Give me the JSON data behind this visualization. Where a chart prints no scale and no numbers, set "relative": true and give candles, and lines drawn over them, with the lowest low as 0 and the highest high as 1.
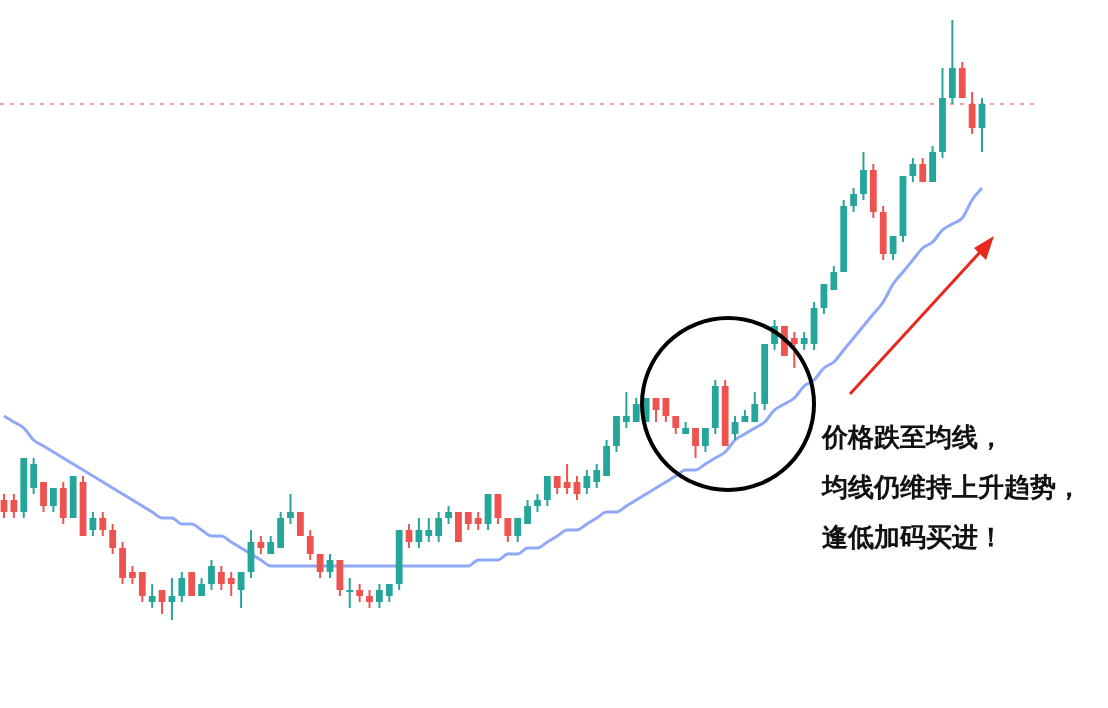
{
  "chart_data": {
    "type": "candlestick",
    "relative": true,
    "categories": [
      null,
      null,
      null,
      null,
      null,
      null,
      null,
      null,
      null,
      null,
      null,
      null,
      null,
      null,
      null,
      null,
      null,
      null,
      null,
      null,
      null,
      null,
      null,
      null,
      null,
      null,
      null,
      null,
      null,
      null,
      null,
      null,
      null,
      null,
      null,
      null,
      null,
      null,
      null,
      null,
      null,
      null,
      null,
      null,
      null,
      null,
      null,
      null,
      null,
      null,
      null,
      null,
      null,
      null,
      null,
      null,
      null,
      null,
      null,
      null,
      null,
      null,
      null,
      null,
      null,
      null,
      null,
      null,
      null,
      null,
      null,
      null,
      null,
      null,
      null,
      null,
      null,
      null,
      null,
      null,
      null,
      null,
      null,
      null,
      null,
      null,
      null,
      null,
      null,
      null,
      null,
      null,
      null,
      null,
      null,
      null,
      null,
      null,
      null,
      null
    ],
    "ohlc": [
      [
        0.2,
        0.21,
        0.17,
        0.18
      ],
      [
        0.2,
        0.21,
        0.17,
        0.18
      ],
      [
        0.18,
        0.27,
        0.17,
        0.27
      ],
      [
        0.22,
        0.27,
        0.21,
        0.26
      ],
      [
        0.23,
        0.23,
        0.18,
        0.19
      ],
      [
        0.19,
        0.22,
        0.18,
        0.22
      ],
      [
        0.22,
        0.23,
        0.16,
        0.17
      ],
      [
        0.17,
        0.24,
        0.17,
        0.24
      ],
      [
        0.23,
        0.24,
        0.14,
        0.14
      ],
      [
        0.15,
        0.18,
        0.14,
        0.17
      ],
      [
        0.17,
        0.18,
        0.14,
        0.15
      ],
      [
        0.15,
        0.16,
        0.11,
        0.12
      ],
      [
        0.12,
        0.13,
        0.06,
        0.07
      ],
      [
        0.08,
        0.09,
        0.06,
        0.07
      ],
      [
        0.08,
        0.08,
        0.03,
        0.04
      ],
      [
        0.03,
        0.06,
        0.02,
        0.04
      ],
      [
        0.05,
        0.05,
        0.01,
        0.03
      ],
      [
        0.03,
        0.07,
        0,
        0.04
      ],
      [
        0.04,
        0.08,
        0.03,
        0.07
      ],
      [
        0.08,
        0.08,
        0.04,
        0.04
      ],
      [
        0.04,
        0.07,
        0.04,
        0.06
      ],
      [
        0.06,
        0.1,
        0.05,
        0.09
      ],
      [
        0.08,
        0.09,
        0.05,
        0.06
      ],
      [
        0.07,
        0.08,
        0.04,
        0.06
      ],
      [
        0.05,
        0.08,
        0.02,
        0.08
      ],
      [
        0.08,
        0.15,
        0.07,
        0.13
      ],
      [
        0.13,
        0.14,
        0.11,
        0.12
      ],
      [
        0.11,
        0.14,
        0.11,
        0.13
      ],
      [
        0.12,
        0.18,
        0.12,
        0.17
      ],
      [
        0.17,
        0.21,
        0.16,
        0.18
      ],
      [
        0.18,
        0.18,
        0.14,
        0.14
      ],
      [
        0.14,
        0.15,
        0.1,
        0.11
      ],
      [
        0.11,
        0.11,
        0.07,
        0.08
      ],
      [
        0.08,
        0.11,
        0.07,
        0.1
      ],
      [
        0.1,
        0.1,
        0.04,
        0.05
      ],
      [
        0.05,
        0.07,
        0.02,
        0.05
      ],
      [
        0.05,
        0.06,
        0.03,
        0.04
      ],
      [
        0.04,
        0.05,
        0.02,
        0.03
      ],
      [
        0.03,
        0.06,
        0.02,
        0.05
      ],
      [
        0.04,
        0.06,
        0.03,
        0.06
      ],
      [
        0.06,
        0.15,
        0.05,
        0.15
      ],
      [
        0.15,
        0.16,
        0.12,
        0.13
      ],
      [
        0.13,
        0.17,
        0.12,
        0.15
      ],
      [
        0.14,
        0.17,
        0.13,
        0.15
      ],
      [
        0.14,
        0.18,
        0.13,
        0.17
      ],
      [
        0.17,
        0.19,
        0.16,
        0.18
      ],
      [
        0.18,
        0.18,
        0.13,
        0.13
      ],
      [
        0.18,
        0.18,
        0.15,
        0.16
      ],
      [
        0.17,
        0.18,
        0.15,
        0.16
      ],
      [
        0.16,
        0.21,
        0.15,
        0.21
      ],
      [
        0.21,
        0.21,
        0.16,
        0.17
      ],
      [
        0.17,
        0.17,
        0.13,
        0.14
      ],
      [
        0.14,
        0.17,
        0.13,
        0.17
      ],
      [
        0.16,
        0.2,
        0.16,
        0.19
      ],
      [
        0.19,
        0.21,
        0.18,
        0.2
      ],
      [
        0.2,
        0.24,
        0.19,
        0.24
      ],
      [
        0.24,
        0.24,
        0.21,
        0.22
      ],
      [
        0.23,
        0.26,
        0.21,
        0.22
      ],
      [
        0.23,
        0.24,
        0.2,
        0.21
      ],
      [
        0.22,
        0.25,
        0.21,
        0.24
      ],
      [
        0.23,
        0.26,
        0.22,
        0.25
      ],
      [
        0.24,
        0.3,
        0.24,
        0.29
      ],
      [
        0.29,
        0.34,
        0.28,
        0.34
      ],
      [
        0.33,
        0.38,
        0.32,
        0.34
      ],
      [
        0.33,
        0.37,
        0.33,
        0.36
      ],
      [
        0.33,
        0.37,
        0.33,
        0.37
      ],
      [
        0.37,
        0.37,
        0.33,
        0.35
      ],
      [
        0.37,
        0.37,
        0.33,
        0.34
      ],
      [
        0.34,
        0.34,
        0.31,
        0.32
      ],
      [
        0.31,
        0.33,
        0.31,
        0.32
      ],
      [
        0.32,
        0.32,
        0.27,
        0.29
      ],
      [
        0.29,
        0.32,
        0.28,
        0.32
      ],
      [
        0.32,
        0.4,
        0.31,
        0.39
      ],
      [
        0.39,
        0.4,
        0.29,
        0.29
      ],
      [
        0.31,
        0.34,
        0.3,
        0.33
      ],
      [
        0.33,
        0.35,
        0.33,
        0.34
      ],
      [
        0.33,
        0.38,
        0.33,
        0.36
      ],
      [
        0.36,
        0.46,
        0.35,
        0.46
      ],
      [
        0.46,
        0.5,
        0.45,
        0.49
      ],
      [
        0.49,
        0.49,
        0.44,
        0.44
      ],
      [
        0.47,
        0.48,
        0.42,
        0.46
      ],
      [
        0.46,
        0.48,
        0.45,
        0.47
      ],
      [
        0.46,
        0.53,
        0.45,
        0.52
      ],
      [
        0.52,
        0.56,
        0.51,
        0.56
      ],
      [
        0.55,
        0.59,
        0.55,
        0.58
      ],
      [
        0.58,
        0.7,
        0.58,
        0.69
      ],
      [
        0.69,
        0.72,
        0.68,
        0.71
      ],
      [
        0.71,
        0.78,
        0.7,
        0.75
      ],
      [
        0.75,
        0.76,
        0.67,
        0.68
      ],
      [
        0.68,
        0.69,
        0.6,
        0.61
      ],
      [
        0.61,
        0.64,
        0.6,
        0.64
      ],
      [
        0.64,
        0.74,
        0.63,
        0.74
      ],
      [
        0.74,
        0.77,
        0.73,
        0.76
      ],
      [
        0.76,
        0.77,
        0.73,
        0.73
      ],
      [
        0.73,
        0.79,
        0.73,
        0.78
      ],
      [
        0.78,
        0.92,
        0.77,
        0.87
      ],
      [
        0.87,
        1,
        0.86,
        0.92
      ],
      [
        0.92,
        0.93,
        0.87,
        0.87
      ],
      [
        0.86,
        0.88,
        0.81,
        0.82
      ],
      [
        0.82,
        0.87,
        0.78,
        0.86
      ]
    ],
    "colors": [
      "#ef5350",
      "#ef5350",
      "#26a69a",
      "#26a69a",
      "#ef5350",
      "#26a69a",
      "#ef5350",
      "#26a69a",
      "#ef5350",
      "#26a69a",
      "#ef5350",
      "#ef5350",
      "#ef5350",
      "#ef5350",
      "#ef5350",
      "#26a69a",
      "#ef5350",
      "#26a69a",
      "#26a69a",
      "#ef5350",
      "#26a69a",
      "#26a69a",
      "#ef5350",
      "#ef5350",
      "#26a69a",
      "#26a69a",
      "#ef5350",
      "#26a69a",
      "#26a69a",
      "#26a69a",
      "#ef5350",
      "#ef5350",
      "#ef5350",
      "#26a69a",
      "#ef5350",
      "#26a69a",
      "#ef5350",
      "#ef5350",
      "#26a69a",
      "#26a69a",
      "#26a69a",
      "#ef5350",
      "#26a69a",
      "#26a69a",
      "#26a69a",
      "#26a69a",
      "#ef5350",
      "#ef5350",
      "#ef5350",
      "#26a69a",
      "#ef5350",
      "#ef5350",
      "#26a69a",
      "#26a69a",
      "#26a69a",
      "#26a69a",
      "#ef5350",
      "#ef5350",
      "#ef5350",
      "#26a69a",
      "#26a69a",
      "#26a69a",
      "#26a69a",
      "#26a69a",
      "#26a69a",
      "#26a69a",
      "#ef5350",
      "#ef5350",
      "#ef5350",
      "#26a69a",
      "#ef5350",
      "#26a69a",
      "#26a69a",
      "#ef5350",
      "#26a69a",
      "#26a69a",
      "#26a69a",
      "#26a69a",
      "#26a69a",
      "#ef5350",
      "#ef5350",
      "#26a69a",
      "#26a69a",
      "#26a69a",
      "#26a69a",
      "#26a69a",
      "#26a69a",
      "#26a69a",
      "#ef5350",
      "#ef5350",
      "#26a69a",
      "#26a69a",
      "#26a69a",
      "#ef5350",
      "#26a69a",
      "#26a69a",
      "#26a69a",
      "#ef5350",
      "#ef5350",
      "#26a69a"
    ],
    "series": [
      {
        "type": "line",
        "color": "#8fa8f8",
        "values": [
          0.34,
          0.33,
          0.32,
          0.3,
          0.29,
          0.28,
          0.27,
          0.26,
          0.25,
          0.24,
          0.23,
          0.22,
          0.21,
          0.2,
          0.19,
          0.18,
          0.17,
          0.17,
          0.16,
          0.16,
          0.15,
          0.14,
          0.14,
          0.13,
          0.12,
          0.11,
          0.1,
          0.09,
          0.09,
          0.09,
          0.09,
          0.09,
          0.09,
          0.09,
          0.09,
          0.09,
          0.09,
          0.09,
          0.09,
          0.09,
          0.09,
          0.09,
          0.09,
          0.09,
          0.09,
          0.09,
          0.09,
          0.09,
          0.1,
          0.1,
          0.1,
          0.11,
          0.11,
          0.12,
          0.12,
          0.13,
          0.14,
          0.15,
          0.15,
          0.16,
          0.17,
          0.18,
          0.18,
          0.19,
          0.2,
          0.21,
          0.22,
          0.23,
          0.24,
          0.25,
          0.25,
          0.26,
          0.27,
          0.28,
          0.3,
          0.31,
          0.32,
          0.33,
          0.35,
          0.36,
          0.37,
          0.39,
          0.4,
          0.42,
          0.43,
          0.45,
          0.47,
          0.49,
          0.51,
          0.53,
          0.56,
          0.58,
          0.6,
          0.62,
          0.63,
          0.65,
          0.66,
          0.67,
          0.7,
          0.72
        ]
      }
    ],
    "ref_lines": [
      {
        "axis": "y",
        "value": 0.86,
        "color": "#f4a0a0",
        "line_style": "dotted"
      }
    ],
    "annotations": [
      "价格跌至均线，",
      "均线仍维持上升趋势，",
      "逢低加码买进！"
    ]
  }
}
